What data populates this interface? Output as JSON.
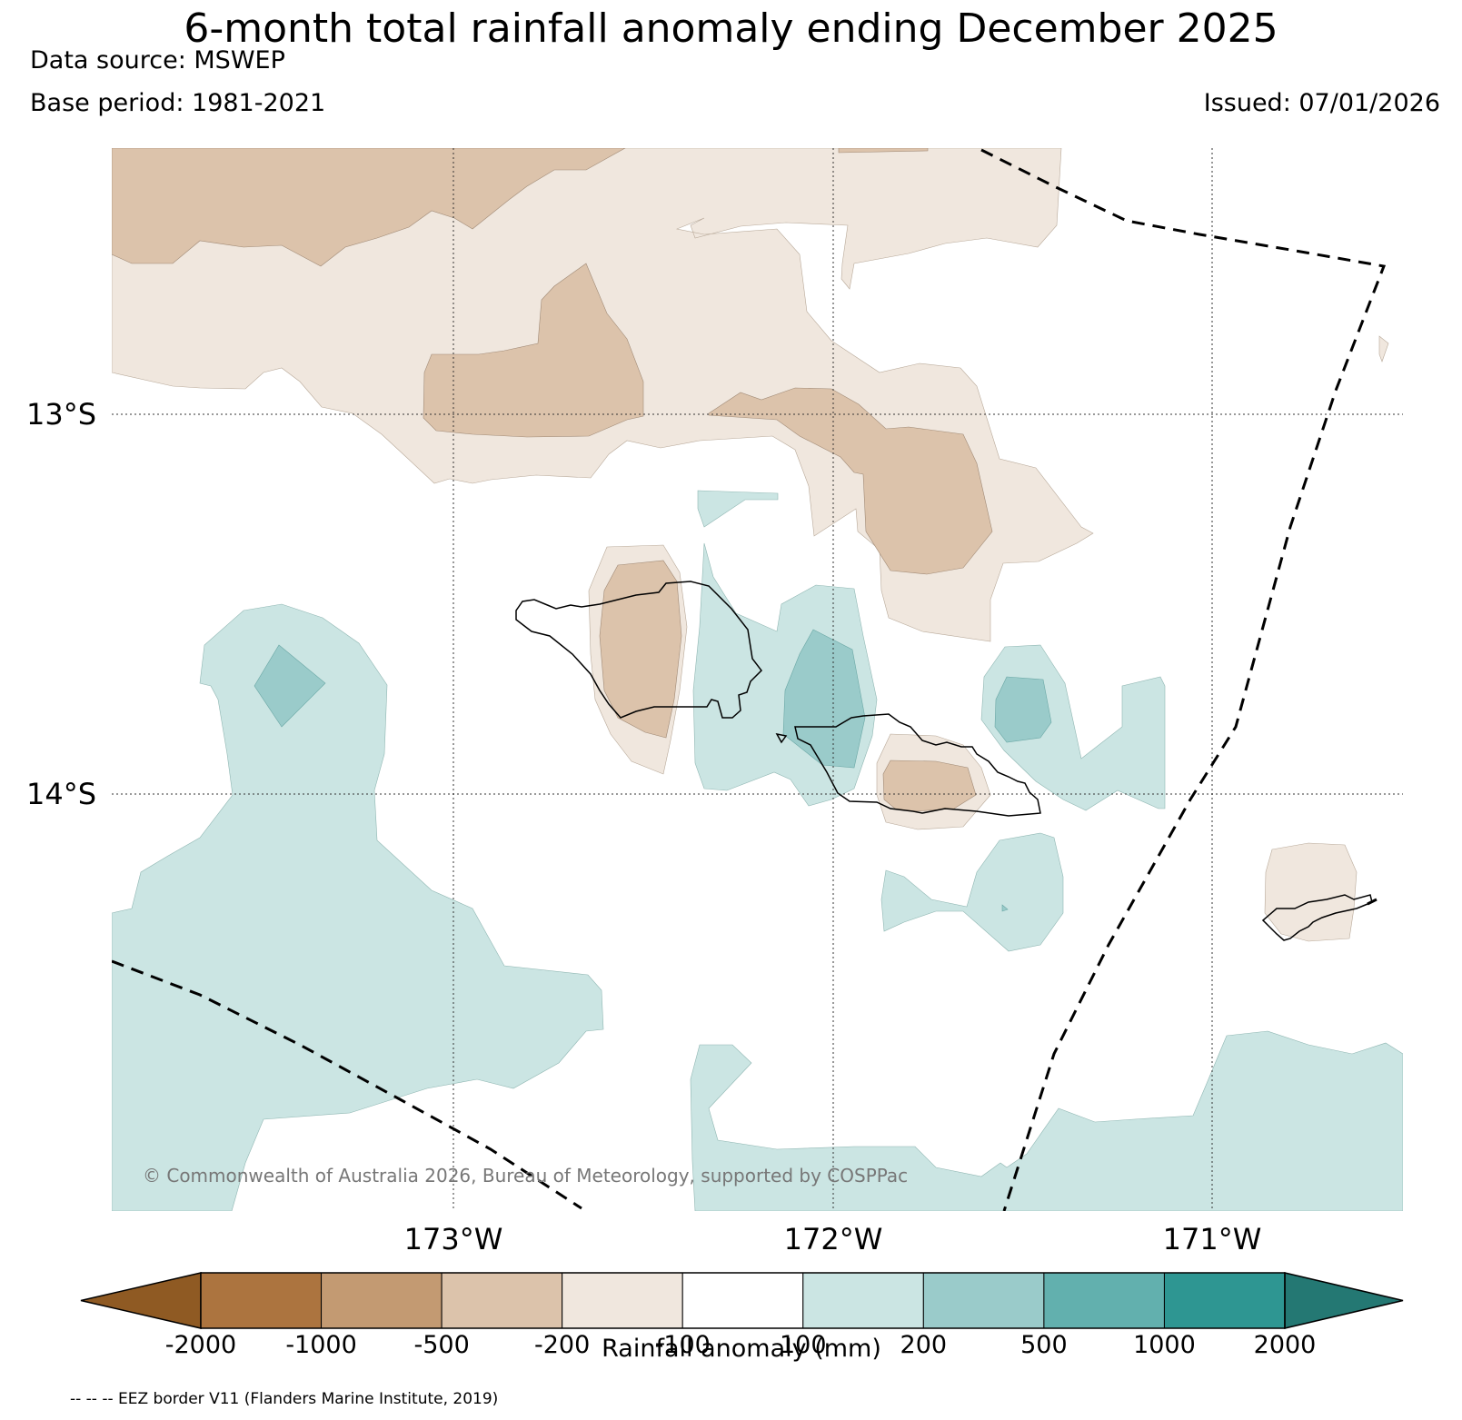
{
  "header": {
    "title": "6-month total rainfall anomaly ending December 2025",
    "data_source": "Data source: MSWEP",
    "base_period": "Base period: 1981-2021",
    "issued": "Issued: 07/01/2026"
  },
  "map": {
    "lat_labels": [
      "13°S",
      "14°S"
    ],
    "lon_labels": [
      "173°W",
      "172°W",
      "171°W"
    ],
    "copyright": "© Commonwealth of Australia 2026, Bureau of Meteorology, supported by COSPPac"
  },
  "legend": {
    "title": "Rainfall anomaly (mm)",
    "tick_labels": [
      "-2000",
      "-1000",
      "-500",
      "-200",
      "-100",
      "100",
      "200",
      "500",
      "1000",
      "2000"
    ],
    "colors": [
      "#8f5a23",
      "#ac743f",
      "#c39a72",
      "#dcc3ab",
      "#f0e7de",
      "#ffffff",
      "#cbe5e3",
      "#9acbca",
      "#62b0ae",
      "#2e9692",
      "#247873"
    ]
  },
  "footer": {
    "eez_note": "-- -- -- EEZ border V11 (Flanders Marine Institute, 2019)"
  }
}
